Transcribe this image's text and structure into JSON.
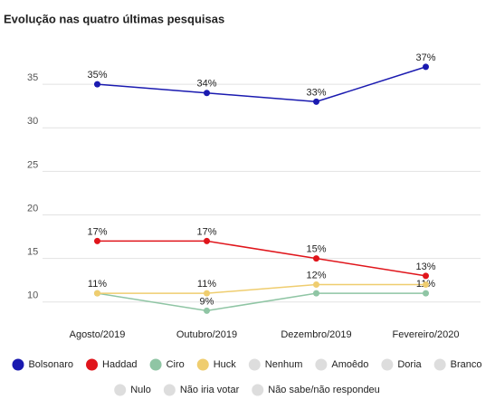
{
  "chart_data": {
    "type": "line",
    "title": "Evolução nas quatro últimas pesquisas",
    "categories": [
      "Agosto/2019",
      "Outubro/2019",
      "Dezembro/2019",
      "Fevereiro/2020"
    ],
    "series": [
      {
        "name": "Bolsonaro",
        "color": "#1a1ab0",
        "values": [
          35,
          34,
          33,
          37
        ],
        "value_labels": [
          "35%",
          "34%",
          "33%",
          "37%"
        ]
      },
      {
        "name": "Haddad",
        "color": "#e0151b",
        "values": [
          17,
          17,
          15,
          13
        ],
        "value_labels": [
          "17%",
          "17%",
          "15%",
          "13%"
        ]
      },
      {
        "name": "Ciro",
        "color": "#8fc5a4",
        "values": [
          11,
          9,
          11,
          11
        ],
        "value_labels": [
          null,
          "9%",
          null,
          "11%"
        ]
      },
      {
        "name": "Huck",
        "color": "#efcd6f",
        "values": [
          11,
          11,
          12,
          12
        ],
        "value_labels": [
          "11%",
          "11%",
          "12%",
          null
        ]
      }
    ],
    "hidden_series": [
      {
        "name": "Nenhum",
        "color": "#dddddd"
      },
      {
        "name": "Amoêdo",
        "color": "#dddddd"
      },
      {
        "name": "Doria",
        "color": "#dddddd"
      },
      {
        "name": "Branco",
        "color": "#dddddd"
      },
      {
        "name": "Nulo",
        "color": "#dddddd"
      },
      {
        "name": "Não iria votar",
        "color": "#dddddd"
      },
      {
        "name": "Não sabe/não respondeu",
        "color": "#dddddd"
      }
    ],
    "ylim": [
      8,
      40
    ],
    "yticks": [
      10,
      15,
      20,
      25,
      30,
      35
    ],
    "grid": true,
    "legend": "bottom"
  }
}
